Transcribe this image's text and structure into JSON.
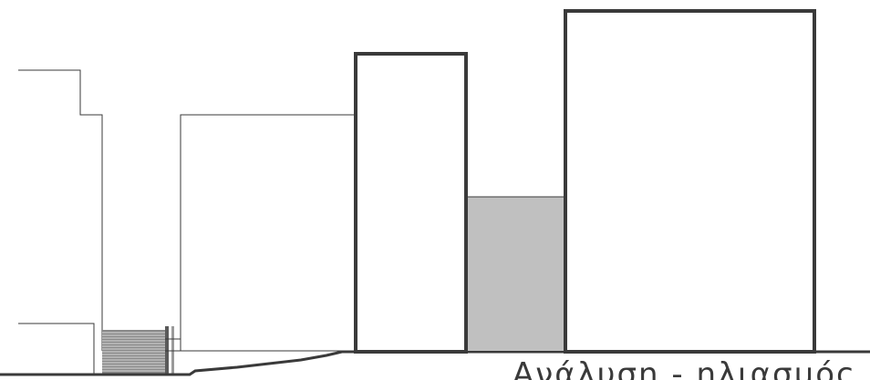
{
  "caption": "Ανάλυση - ηλιασμός",
  "colors": {
    "ink": "#3a3a3a",
    "fill": "#c0c0c0",
    "background": "#ffffff"
  }
}
